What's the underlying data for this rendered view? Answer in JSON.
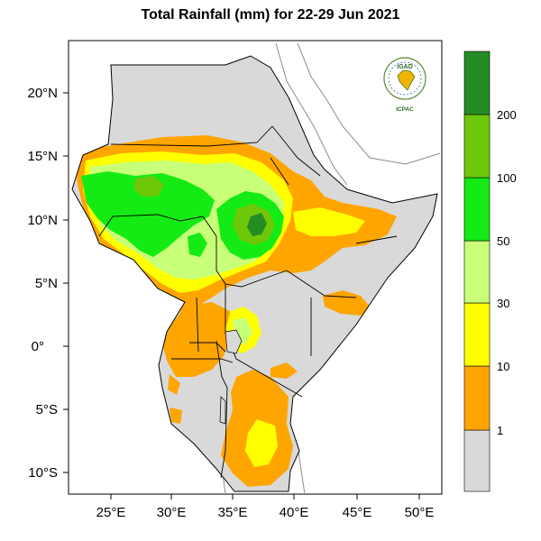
{
  "title": "Total Rainfall (mm) for 22-29 Jun 2021",
  "logo": {
    "org_top": "IGAD",
    "org_bottom": "ICPAC",
    "icon": "igad-africa-globe-logo"
  },
  "lat_labels": [
    "20°N",
    "15°N",
    "10°N",
    "5°N",
    "0°",
    "5°S",
    "10°S"
  ],
  "lon_labels": [
    "25°E",
    "30°E",
    "35°E",
    "40°E",
    "45°E",
    "50°E"
  ],
  "legend": {
    "classes": [
      {
        "range": "<1",
        "color": "#d9d9d9"
      },
      {
        "range": "1-10",
        "color": "#ffa500"
      },
      {
        "range": "10-30",
        "color": "#ffff00"
      },
      {
        "range": "30-50",
        "color": "#c8ff78"
      },
      {
        "range": "50-100",
        "color": "#14eb14"
      },
      {
        "range": "100-200",
        "color": "#6ec80a"
      },
      {
        "range": ">200",
        "color": "#238c23"
      }
    ],
    "breaks": [
      "1",
      "10",
      "30",
      "50",
      "100",
      "200"
    ]
  },
  "colors": {
    "land_base": "#d9d9d9",
    "border": "#000000",
    "frame": "#000000",
    "coast_outside": "#8c8c8c"
  }
}
